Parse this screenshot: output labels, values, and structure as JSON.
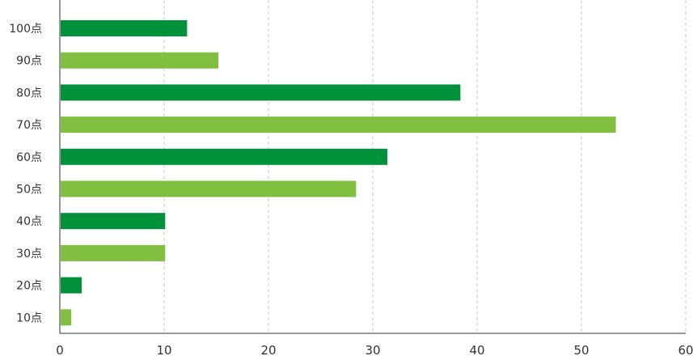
{
  "chart_data": {
    "type": "bar",
    "orientation": "horizontal",
    "categories": [
      "100点",
      "90点",
      "80点",
      "70点",
      "60点",
      "50点",
      "40点",
      "30点",
      "20点",
      "10点"
    ],
    "values": [
      12.2,
      15.2,
      38.4,
      53.3,
      31.4,
      28.4,
      10.1,
      10.1,
      2.1,
      1.1
    ],
    "bar_colors": [
      "#00913a",
      "#80bf3f",
      "#00913a",
      "#80bf3f",
      "#00913a",
      "#80bf3f",
      "#00913a",
      "#80bf3f",
      "#00913a",
      "#80bf3f"
    ],
    "xlim": [
      0,
      60
    ],
    "x_ticks": [
      "0",
      "10",
      "20",
      "30",
      "40",
      "50",
      "60"
    ],
    "title": "",
    "xlabel": "",
    "ylabel": "",
    "grid": "vertical dashed",
    "legend": "none"
  }
}
